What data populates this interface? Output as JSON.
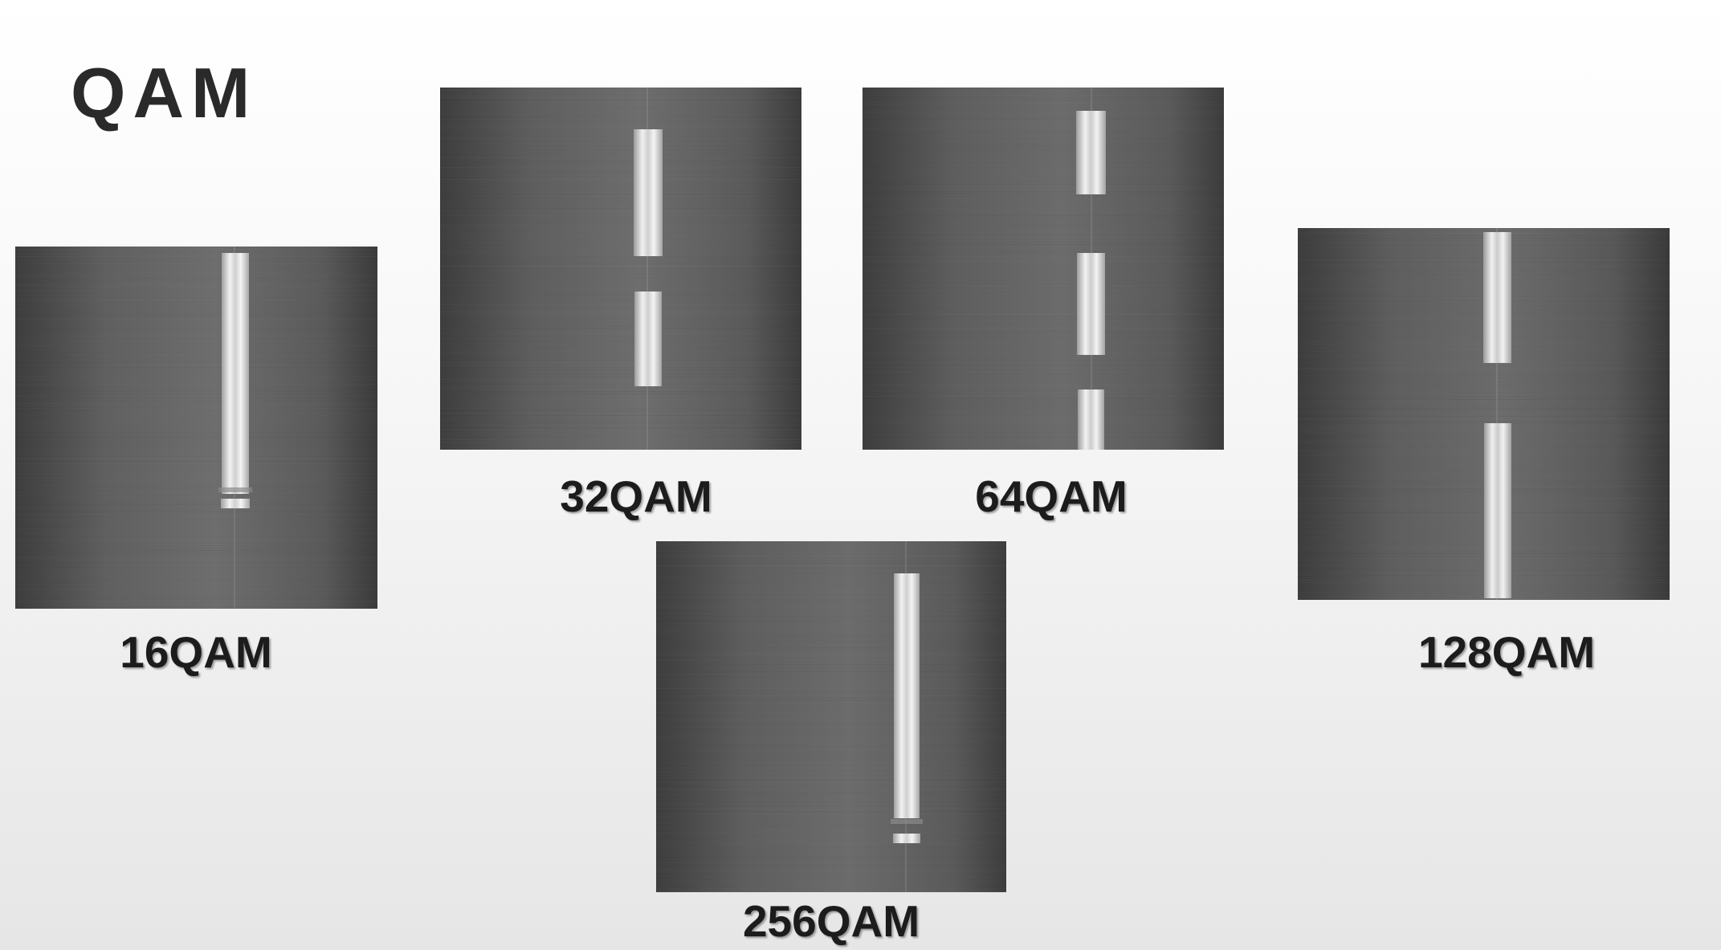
{
  "slide": {
    "title": "QAM"
  },
  "panels": [
    {
      "id": "16qam",
      "label": "16QAM",
      "kind": "waterfall-spectrogram"
    },
    {
      "id": "32qam",
      "label": "32QAM",
      "kind": "waterfall-spectrogram"
    },
    {
      "id": "64qam",
      "label": "64QAM",
      "kind": "waterfall-spectrogram"
    },
    {
      "id": "128qam",
      "label": "128QAM",
      "kind": "waterfall-spectrogram"
    },
    {
      "id": "256qam",
      "label": "256QAM",
      "kind": "waterfall-spectrogram"
    }
  ],
  "colors": {
    "noise_dark": "#3a3a3a",
    "noise_mid": "#6c6c6c",
    "signal": "#e6e6e6",
    "text": "#1c1c1c"
  }
}
